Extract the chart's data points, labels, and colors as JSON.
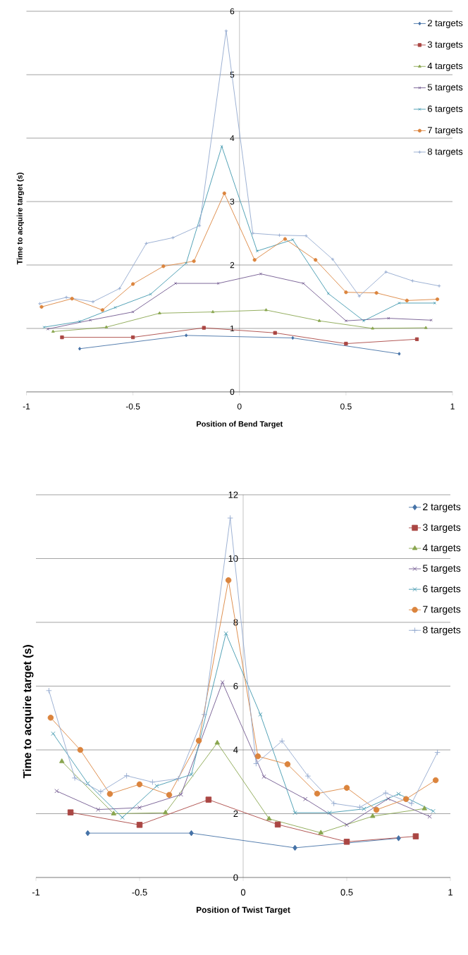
{
  "chart_data": [
    {
      "type": "line",
      "xlabel": "Position of Bend Target",
      "ylabel": "Time to acquire target (s)",
      "xlim": [
        -1,
        1
      ],
      "ylim": [
        0,
        6
      ],
      "xticks": [
        -1,
        -0.5,
        0,
        0.5,
        1
      ],
      "yticks": [
        0,
        1,
        2,
        3,
        4,
        5,
        6
      ],
      "grid": "y",
      "legend": "top right",
      "series": [
        {
          "name": "2 targets",
          "color": "#4572a7",
          "marker": "diamond",
          "x": [
            -0.75,
            -0.25,
            0.25,
            0.75
          ],
          "values": [
            0.68,
            0.89,
            0.85,
            0.6
          ]
        },
        {
          "name": "3 targets",
          "color": "#aa4643",
          "marker": "square",
          "x": [
            -0.833,
            -0.5,
            -0.167,
            0.167,
            0.5,
            0.833
          ],
          "values": [
            0.86,
            0.86,
            1.01,
            0.93,
            0.76,
            0.83
          ]
        },
        {
          "name": "4 targets",
          "color": "#89a54e",
          "marker": "triangle",
          "x": [
            -0.875,
            -0.625,
            -0.375,
            -0.125,
            0.125,
            0.375,
            0.625,
            0.875
          ],
          "values": [
            0.95,
            1.02,
            1.24,
            1.26,
            1.29,
            1.12,
            1.0,
            1.01
          ]
        },
        {
          "name": "5 targets",
          "color": "#71588f",
          "marker": "cross",
          "x": [
            -0.9,
            -0.7,
            -0.5,
            -0.3,
            -0.1,
            0.1,
            0.3,
            0.5,
            0.7,
            0.9
          ],
          "values": [
            0.99,
            1.13,
            1.26,
            1.71,
            1.71,
            1.86,
            1.71,
            1.12,
            1.16,
            1.13
          ]
        },
        {
          "name": "6 targets",
          "color": "#4198af",
          "marker": "cross",
          "x": [
            -0.917,
            -0.75,
            -0.583,
            -0.417,
            -0.25,
            -0.083,
            0.083,
            0.25,
            0.417,
            0.583,
            0.75,
            0.917
          ],
          "values": [
            1.02,
            1.11,
            1.33,
            1.54,
            2.03,
            3.87,
            2.22,
            2.4,
            1.55,
            1.12,
            1.4,
            1.4
          ]
        },
        {
          "name": "7 targets",
          "color": "#db843d",
          "marker": "circle",
          "x": [
            -0.929,
            -0.786,
            -0.643,
            -0.5,
            -0.357,
            -0.214,
            -0.071,
            0.071,
            0.214,
            0.357,
            0.5,
            0.643,
            0.786,
            0.929
          ],
          "values": [
            1.34,
            1.47,
            1.29,
            1.7,
            1.98,
            2.06,
            3.13,
            2.08,
            2.41,
            2.08,
            1.57,
            1.56,
            1.44,
            1.46
          ]
        },
        {
          "name": "8 targets",
          "color": "#93a9cf",
          "marker": "plus",
          "x": [
            -0.9375,
            -0.8125,
            -0.6875,
            -0.5625,
            -0.4375,
            -0.3125,
            -0.1875,
            -0.0625,
            0.0625,
            0.1875,
            0.3125,
            0.4375,
            0.5625,
            0.6875,
            0.8125,
            0.9375
          ],
          "values": [
            1.39,
            1.49,
            1.42,
            1.63,
            2.34,
            2.43,
            2.62,
            5.69,
            2.5,
            2.47,
            2.46,
            2.09,
            1.51,
            1.89,
            1.75,
            1.67
          ]
        }
      ]
    },
    {
      "type": "line",
      "xlabel": "Position of Twist Target",
      "ylabel": "Time to acquire target (s)",
      "xlim": [
        -1,
        1
      ],
      "ylim": [
        0,
        12
      ],
      "xticks": [
        -1,
        -0.5,
        0,
        0.5,
        1
      ],
      "yticks": [
        0,
        2,
        4,
        6,
        8,
        10,
        12
      ],
      "grid": "y",
      "legend": "top right",
      "series": [
        {
          "name": "2 targets",
          "color": "#4572a7",
          "marker": "diamond",
          "x": [
            -0.75,
            -0.25,
            0.25,
            0.75
          ],
          "values": [
            1.39,
            1.39,
            0.93,
            1.23
          ]
        },
        {
          "name": "3 targets",
          "color": "#aa4643",
          "marker": "square",
          "x": [
            -0.833,
            -0.5,
            -0.167,
            0.167,
            0.5,
            0.833
          ],
          "values": [
            2.04,
            1.65,
            2.44,
            1.66,
            1.12,
            1.29
          ]
        },
        {
          "name": "4 targets",
          "color": "#89a54e",
          "marker": "triangle",
          "x": [
            -0.875,
            -0.625,
            -0.375,
            -0.125,
            0.125,
            0.375,
            0.625,
            0.875
          ],
          "values": [
            3.64,
            2.0,
            2.03,
            4.22,
            1.84,
            1.4,
            1.92,
            2.16
          ]
        },
        {
          "name": "5 targets",
          "color": "#71588f",
          "marker": "cross",
          "x": [
            -0.9,
            -0.7,
            -0.5,
            -0.3,
            -0.1,
            0.1,
            0.3,
            0.5,
            0.7,
            0.9
          ],
          "values": [
            2.71,
            2.13,
            2.19,
            2.6,
            6.12,
            3.16,
            2.46,
            1.65,
            2.47,
            1.91
          ]
        },
        {
          "name": "6 targets",
          "color": "#4198af",
          "marker": "cross",
          "x": [
            -0.917,
            -0.75,
            -0.583,
            -0.417,
            -0.25,
            -0.083,
            0.083,
            0.25,
            0.417,
            0.583,
            0.75,
            0.917
          ],
          "values": [
            4.51,
            2.95,
            1.88,
            2.87,
            3.23,
            7.65,
            5.11,
            2.03,
            2.03,
            2.15,
            2.62,
            2.08
          ]
        },
        {
          "name": "7 targets",
          "color": "#db843d",
          "marker": "circle",
          "x": [
            -0.929,
            -0.786,
            -0.643,
            -0.5,
            -0.357,
            -0.214,
            -0.071,
            0.071,
            0.214,
            0.357,
            0.5,
            0.643,
            0.786,
            0.929
          ],
          "values": [
            5.01,
            4.0,
            2.62,
            2.92,
            2.59,
            4.29,
            9.32,
            3.8,
            3.55,
            2.63,
            2.81,
            2.12,
            2.46,
            3.05
          ]
        },
        {
          "name": "8 targets",
          "color": "#93a9cf",
          "marker": "plus",
          "x": [
            -0.9375,
            -0.8125,
            -0.6875,
            -0.5625,
            -0.4375,
            -0.3125,
            -0.1875,
            -0.0625,
            0.0625,
            0.1875,
            0.3125,
            0.4375,
            0.5625,
            0.6875,
            0.8125,
            0.9375
          ],
          "values": [
            5.86,
            3.12,
            2.69,
            3.19,
            2.99,
            3.1,
            5.11,
            11.27,
            3.57,
            4.28,
            3.18,
            2.32,
            2.2,
            2.65,
            2.32,
            3.92
          ]
        }
      ]
    }
  ]
}
